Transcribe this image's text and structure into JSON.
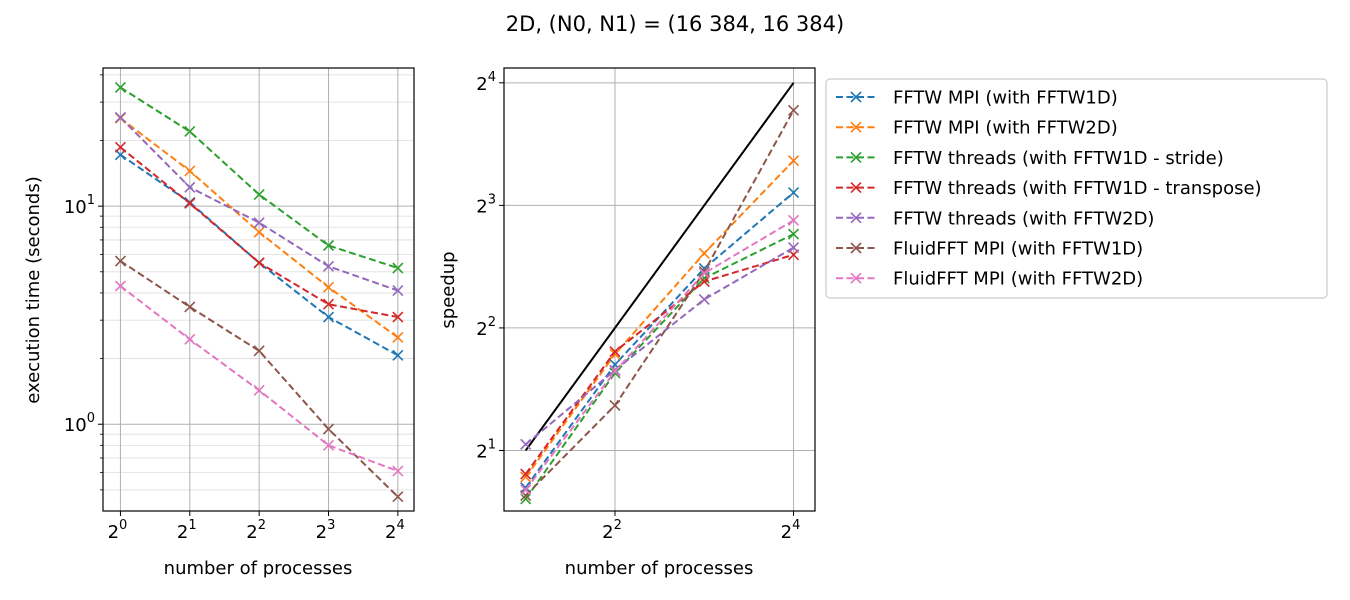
{
  "figure": {
    "title": "2D, (N0, N1) = (16 384, 16 384)"
  },
  "chart_data": [
    {
      "type": "line",
      "xlabel": "number of processes",
      "ylabel": "execution time (seconds)",
      "x_scale": "log2",
      "y_scale": "log10",
      "grid": true,
      "xlim": [
        0.84,
        18.8
      ],
      "ylim": [
        0.4,
        43
      ],
      "x_ticks": [
        {
          "value": 1,
          "base": "2",
          "exp": "0"
        },
        {
          "value": 2,
          "base": "2",
          "exp": "1"
        },
        {
          "value": 4,
          "base": "2",
          "exp": "2"
        },
        {
          "value": 8,
          "base": "2",
          "exp": "3"
        },
        {
          "value": 16,
          "base": "2",
          "exp": "4"
        }
      ],
      "y_ticks": [
        {
          "value": 1,
          "base": "10",
          "exp": "0"
        },
        {
          "value": 10,
          "base": "10",
          "exp": "1"
        }
      ],
      "x": [
        1,
        2,
        4,
        8,
        16
      ],
      "series": [
        {
          "name": "FFTW MPI (with FFTW1D)",
          "color": "#1f77b4",
          "values": [
            17.2,
            10.4,
            5.5,
            3.1,
            2.07
          ]
        },
        {
          "name": "FFTW MPI (with FFTW2D)",
          "color": "#ff7f0e",
          "values": [
            25.3,
            14.5,
            7.6,
            4.25,
            2.5
          ]
        },
        {
          "name": "FFTW threads (with FFTW1D - stride)",
          "color": "#2ca02c",
          "values": [
            35.0,
            22.0,
            11.3,
            6.6,
            5.2
          ]
        },
        {
          "name": "FFTW threads (with FFTW1D - transpose)",
          "color": "#d62728",
          "values": [
            18.6,
            10.3,
            5.5,
            3.55,
            3.1
          ]
        },
        {
          "name": "FFTW threads (with FFTW2D)",
          "color": "#9467bd",
          "values": [
            25.5,
            12.2,
            8.4,
            5.3,
            4.1
          ]
        },
        {
          "name": "FluidFFT MPI (with FFTW1D)",
          "color": "#8c564b",
          "values": [
            5.6,
            3.45,
            2.17,
            0.95,
            0.465
          ]
        },
        {
          "name": "FluidFFT MPI (with FFTW2D)",
          "color": "#e377c2",
          "values": [
            4.3,
            2.45,
            1.43,
            0.8,
            0.61
          ]
        }
      ]
    },
    {
      "type": "line",
      "xlabel": "number of processes",
      "ylabel": "speedup",
      "x_scale": "log2",
      "y_scale": "log2",
      "grid": true,
      "legend": "outside-right",
      "xlim": [
        1.69,
        18.9
      ],
      "ylim": [
        1.42,
        17.4
      ],
      "x_ticks": [
        {
          "value": 4,
          "base": "2",
          "exp": "2"
        },
        {
          "value": 16,
          "base": "2",
          "exp": "4"
        }
      ],
      "y_ticks": [
        {
          "value": 2,
          "base": "2",
          "exp": "1"
        },
        {
          "value": 4,
          "base": "2",
          "exp": "2"
        },
        {
          "value": 8,
          "base": "2",
          "exp": "3"
        },
        {
          "value": 16,
          "base": "2",
          "exp": "4"
        }
      ],
      "ideal": {
        "color": "#000000",
        "x": [
          2,
          16
        ],
        "values": [
          2,
          16
        ]
      },
      "x": [
        2,
        4,
        8,
        16
      ],
      "series": [
        {
          "name": "FFTW MPI (with FFTW1D)",
          "color": "#1f77b4",
          "values": [
            1.62,
            3.25,
            5.6,
            8.6
          ]
        },
        {
          "name": "FFTW MPI (with FFTW2D)",
          "color": "#ff7f0e",
          "values": [
            1.72,
            3.45,
            6.1,
            10.3
          ]
        },
        {
          "name": "FFTW threads (with FFTW1D - stride)",
          "color": "#2ca02c",
          "values": [
            1.52,
            3.1,
            5.3,
            6.8
          ]
        },
        {
          "name": "FFTW threads (with FFTW1D - transpose)",
          "color": "#d62728",
          "values": [
            1.75,
            3.5,
            5.2,
            6.05
          ]
        },
        {
          "name": "FFTW threads (with FFTW2D)",
          "color": "#9467bd",
          "values": [
            2.07,
            3.15,
            4.7,
            6.3
          ]
        },
        {
          "name": "FluidFFT MPI (with FFTW1D)",
          "color": "#8c564b",
          "values": [
            1.55,
            2.58,
            5.5,
            13.7
          ]
        },
        {
          "name": "FluidFFT MPI (with FFTW2D)",
          "color": "#e377c2",
          "values": [
            1.6,
            3.13,
            5.45,
            7.35
          ]
        }
      ]
    }
  ]
}
